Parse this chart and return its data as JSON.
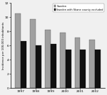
{
  "years": [
    "1997",
    "1998",
    "1999",
    "2000",
    "2001",
    "2002"
  ],
  "sweden": [
    10.5,
    9.7,
    8.2,
    7.8,
    7.1,
    6.8
  ],
  "skane_excluded": [
    6.6,
    6.0,
    6.2,
    5.4,
    5.4,
    5.4
  ],
  "bar_color_sweden": "#a0a0a0",
  "bar_color_skane": "#111111",
  "ylabel": "Incidence per 100,000 inhabitants",
  "ylim": [
    0,
    12
  ],
  "yticks": [
    0,
    2,
    4,
    6,
    8,
    10,
    12
  ],
  "legend_label_1": "Sweden",
  "legend_label_2": "Sweden with Skane county excluded",
  "bar_width": 0.38,
  "background_color": "#f0f0f0"
}
